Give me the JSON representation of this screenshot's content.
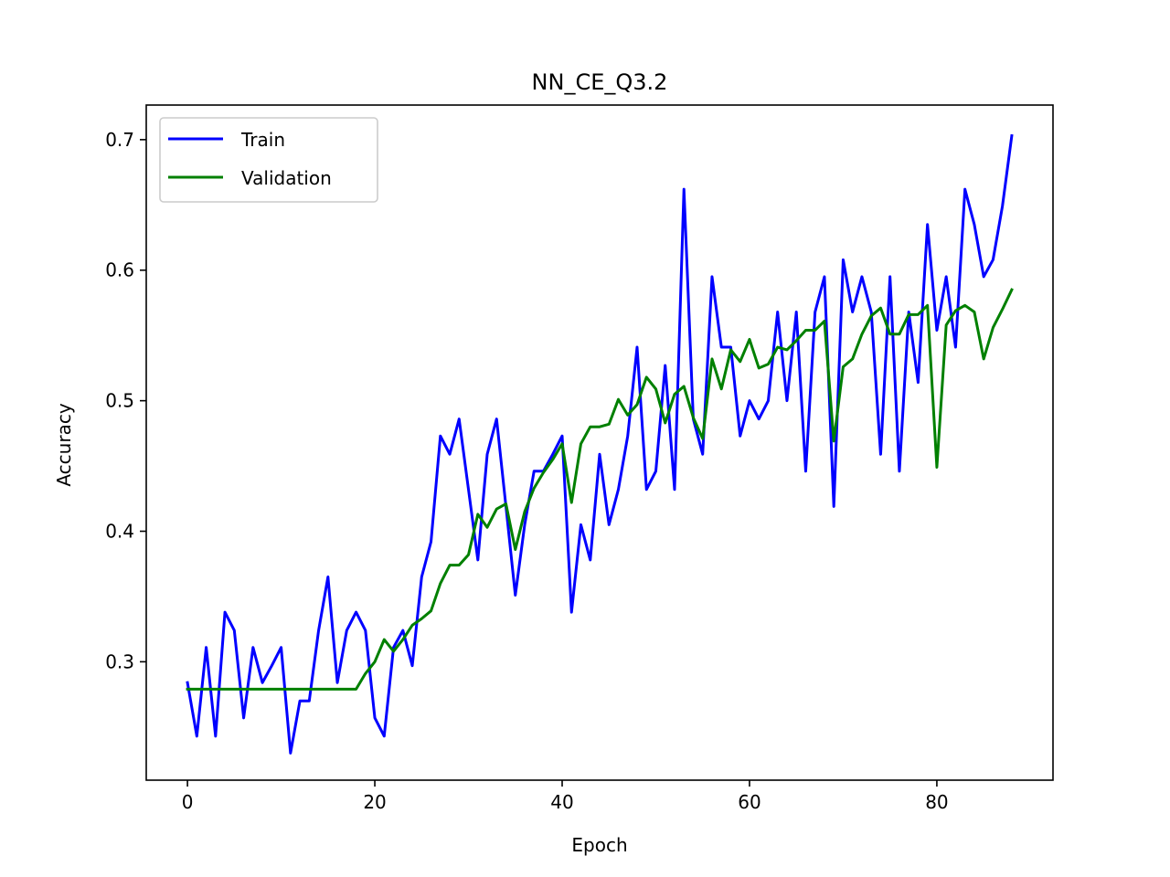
{
  "chart_data": {
    "type": "line",
    "title": "NN_CE_Q3.2",
    "xlabel": "Epoch",
    "ylabel": "Accuracy",
    "xlim": [
      -4.4,
      92.4
    ],
    "ylim": [
      0.2093,
      0.7265
    ],
    "xticks": [
      0,
      20,
      40,
      60,
      80
    ],
    "yticks": [
      0.3,
      0.4,
      0.5,
      0.6,
      0.7
    ],
    "ytick_labels": [
      "0.3",
      "0.4",
      "0.5",
      "0.6",
      "0.7"
    ],
    "grid": false,
    "legend_position": "top-left",
    "series": [
      {
        "name": "Train",
        "color": "#0000ff",
        "x": [
          0,
          1,
          2,
          3,
          4,
          5,
          6,
          7,
          8,
          9,
          10,
          11,
          12,
          13,
          14,
          15,
          16,
          17,
          18,
          19,
          20,
          21,
          22,
          23,
          24,
          25,
          26,
          27,
          28,
          29,
          30,
          31,
          32,
          33,
          34,
          35,
          36,
          37,
          38,
          39,
          40,
          41,
          42,
          43,
          44,
          45,
          46,
          47,
          48,
          49,
          50,
          51,
          52,
          53,
          54,
          55,
          56,
          57,
          58,
          59,
          60,
          61,
          62,
          63,
          64,
          65,
          66,
          67,
          68,
          69,
          70,
          71,
          72,
          73,
          74,
          75,
          76,
          77,
          78,
          79,
          80,
          81,
          82,
          83,
          84,
          85,
          86,
          87,
          88
        ],
        "values": [
          0.284,
          0.243,
          0.311,
          0.243,
          0.338,
          0.324,
          0.257,
          0.311,
          0.284,
          0.297,
          0.311,
          0.23,
          0.27,
          0.27,
          0.324,
          0.365,
          0.284,
          0.324,
          0.338,
          0.324,
          0.257,
          0.243,
          0.311,
          0.324,
          0.297,
          0.365,
          0.392,
          0.473,
          0.459,
          0.486,
          0.432,
          0.378,
          0.459,
          0.486,
          0.419,
          0.351,
          0.405,
          0.446,
          0.446,
          0.459,
          0.473,
          0.338,
          0.405,
          0.378,
          0.459,
          0.405,
          0.432,
          0.473,
          0.541,
          0.432,
          0.446,
          0.527,
          0.432,
          0.662,
          0.486,
          0.459,
          0.595,
          0.541,
          0.541,
          0.473,
          0.5,
          0.486,
          0.5,
          0.568,
          0.5,
          0.568,
          0.446,
          0.568,
          0.595,
          0.419,
          0.608,
          0.568,
          0.595,
          0.568,
          0.459,
          0.595,
          0.446,
          0.568,
          0.514,
          0.635,
          0.554,
          0.595,
          0.541,
          0.662,
          0.635,
          0.595,
          0.608,
          0.649,
          0.703
        ]
      },
      {
        "name": "Validation",
        "color": "#008000",
        "x": [
          0,
          1,
          2,
          3,
          4,
          5,
          6,
          7,
          8,
          9,
          10,
          11,
          12,
          13,
          14,
          15,
          16,
          17,
          18,
          19,
          20,
          21,
          22,
          23,
          24,
          25,
          26,
          27,
          28,
          29,
          30,
          31,
          32,
          33,
          34,
          35,
          36,
          37,
          38,
          39,
          40,
          41,
          42,
          43,
          44,
          45,
          46,
          47,
          48,
          49,
          50,
          51,
          52,
          53,
          54,
          55,
          56,
          57,
          58,
          59,
          60,
          61,
          62,
          63,
          64,
          65,
          66,
          67,
          68,
          69,
          70,
          71,
          72,
          73,
          74,
          75,
          76,
          77,
          78,
          79,
          80,
          81,
          82,
          83,
          84,
          85,
          86,
          87,
          88
        ],
        "values": [
          0.279,
          0.279,
          0.279,
          0.279,
          0.279,
          0.279,
          0.279,
          0.279,
          0.279,
          0.279,
          0.279,
          0.279,
          0.279,
          0.279,
          0.279,
          0.279,
          0.279,
          0.279,
          0.279,
          0.291,
          0.3,
          0.317,
          0.308,
          0.317,
          0.328,
          0.333,
          0.339,
          0.36,
          0.374,
          0.374,
          0.382,
          0.413,
          0.403,
          0.417,
          0.421,
          0.386,
          0.415,
          0.433,
          0.445,
          0.455,
          0.467,
          0.422,
          0.467,
          0.48,
          0.48,
          0.482,
          0.501,
          0.489,
          0.497,
          0.518,
          0.509,
          0.483,
          0.505,
          0.511,
          0.487,
          0.471,
          0.532,
          0.509,
          0.539,
          0.53,
          0.547,
          0.525,
          0.528,
          0.541,
          0.539,
          0.546,
          0.554,
          0.554,
          0.561,
          0.469,
          0.526,
          0.532,
          0.551,
          0.565,
          0.571,
          0.551,
          0.551,
          0.566,
          0.566,
          0.573,
          0.449,
          0.558,
          0.569,
          0.573,
          0.568,
          0.532,
          0.556,
          0.57,
          0.585
        ]
      }
    ]
  }
}
